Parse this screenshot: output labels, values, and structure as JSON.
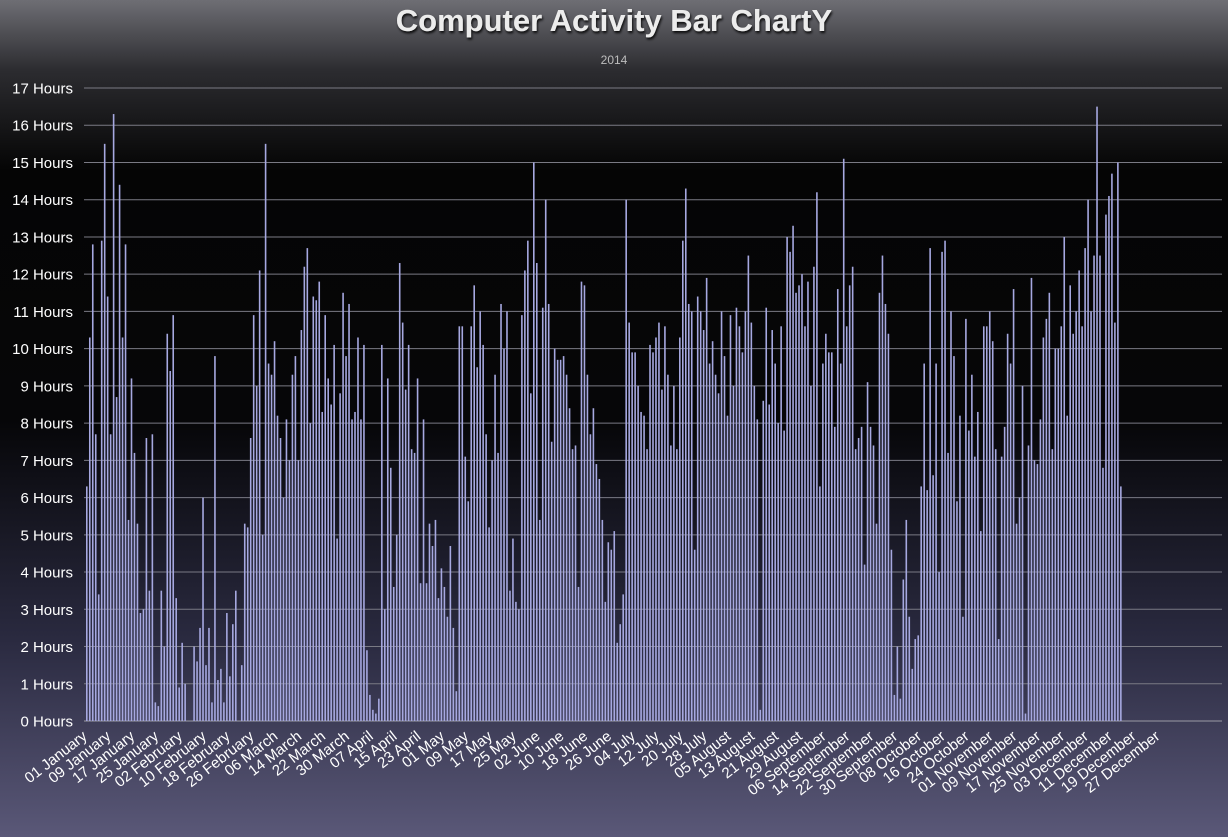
{
  "chart_data": {
    "type": "bar",
    "title": "Computer Activity Bar ChartY",
    "subtitle": "2014",
    "xlabel": "",
    "ylabel": "",
    "ylim": [
      0,
      17
    ],
    "ytick_values": [
      0,
      1,
      2,
      3,
      4,
      5,
      6,
      7,
      8,
      9,
      10,
      11,
      12,
      13,
      14,
      15,
      16,
      17
    ],
    "ytick_labels": [
      "0 Hours",
      "1 Hours",
      "2 Hours",
      "3 Hours",
      "4 Hours",
      "5 Hours",
      "6 Hours",
      "7 Hours",
      "8 Hours",
      "9 Hours",
      "10 Hours",
      "11 Hours",
      "12 Hours",
      "13 Hours",
      "14 Hours",
      "15 Hours",
      "16 Hours",
      "17 Hours"
    ],
    "xtick_labels": [
      "01 January",
      "09 January",
      "17 January",
      "25 January",
      "02 February",
      "10 February",
      "18 February",
      "26 February",
      "06 March",
      "14 March",
      "22 March",
      "30 March",
      "07 April",
      "15 April",
      "23 April",
      "01 May",
      "09 May",
      "17 May",
      "25 May",
      "02 June",
      "10 June",
      "18 June",
      "26 June",
      "04 July",
      "12 July",
      "20 July",
      "28 July",
      "05 August",
      "13 August",
      "21 August",
      "29 August",
      "06 September",
      "14 September",
      "22 September",
      "30 September",
      "08 October",
      "16 October",
      "24 October",
      "01 November",
      "09 November",
      "17 November",
      "25 November",
      "03 December",
      "11 December",
      "19 December",
      "27 December"
    ],
    "x_start": "2014-01-01",
    "x_end": "2014-12-31",
    "grid": true,
    "bar_color": "#a6a8e0",
    "values": [
      6.3,
      10.3,
      12.8,
      7.7,
      3.4,
      12.9,
      15.5,
      11.4,
      7.7,
      16.3,
      8.7,
      14.4,
      10.3,
      12.8,
      5.4,
      9.2,
      7.2,
      5.3,
      2.9,
      3.0,
      7.6,
      3.5,
      7.7,
      0.5,
      0.4,
      3.5,
      2.0,
      10.4,
      9.4,
      10.9,
      3.3,
      0.9,
      2.1,
      1.0,
      0.0,
      0.0,
      2.0,
      1.6,
      2.5,
      6.0,
      1.5,
      2.5,
      0.5,
      9.8,
      1.1,
      1.4,
      0.5,
      2.9,
      1.2,
      2.6,
      3.5,
      0.0,
      1.5,
      5.3,
      5.2,
      7.6,
      10.9,
      9.0,
      12.1,
      5.0,
      15.5,
      9.6,
      9.3,
      10.2,
      8.2,
      7.6,
      6.0,
      8.1,
      7.0,
      9.3,
      9.8,
      7.0,
      10.5,
      12.2,
      12.7,
      8.0,
      11.4,
      11.3,
      11.8,
      8.3,
      10.9,
      9.2,
      8.5,
      10.1,
      4.9,
      8.8,
      11.5,
      9.8,
      11.2,
      8.1,
      8.3,
      10.3,
      8.1,
      10.1,
      1.9,
      0.7,
      0.3,
      0.2,
      0.6,
      10.1,
      3.0,
      9.2,
      6.8,
      3.6,
      5.0,
      12.3,
      10.7,
      8.9,
      10.1,
      7.3,
      7.2,
      9.2,
      3.7,
      8.1,
      3.7,
      5.3,
      4.7,
      5.4,
      3.3,
      4.1,
      3.6,
      2.8,
      4.7,
      2.5,
      0.8,
      10.6,
      10.6,
      7.1,
      5.9,
      10.6,
      11.7,
      9.5,
      11.0,
      10.1,
      7.7,
      5.2,
      7.0,
      9.3,
      7.2,
      11.2,
      10.0,
      11.0,
      3.5,
      4.9,
      3.2,
      3.0,
      10.9,
      12.1,
      12.9,
      8.8,
      15.0,
      12.3,
      5.4,
      11.1,
      14.0,
      11.2,
      7.5,
      10.0,
      9.7,
      9.7,
      9.8,
      9.3,
      8.4,
      7.3,
      7.4,
      3.6,
      11.8,
      11.7,
      9.3,
      7.7,
      8.4,
      6.9,
      6.5,
      5.4,
      3.2,
      4.8,
      4.6,
      5.1,
      2.1,
      2.6,
      3.4,
      14.0,
      10.7,
      9.9,
      9.9,
      9.0,
      8.3,
      8.2,
      7.3,
      10.1,
      9.9,
      10.3,
      10.7,
      8.9,
      10.6,
      9.3,
      7.4,
      9.0,
      7.3,
      10.3,
      12.9,
      14.3,
      11.2,
      11.0,
      4.6,
      11.4,
      11.0,
      10.5,
      11.9,
      9.6,
      10.2,
      9.3,
      8.8,
      11.0,
      9.8,
      8.2,
      10.9,
      9.0,
      11.1,
      10.6,
      9.9,
      11.0,
      12.5,
      10.7,
      9.0,
      8.1,
      0.3,
      8.6,
      11.1,
      8.5,
      10.5,
      9.6,
      8.0,
      10.6,
      7.8,
      13.0,
      12.6,
      13.3,
      11.5,
      11.7,
      12.0,
      10.6,
      11.8,
      9.0,
      12.2,
      14.2,
      6.3,
      9.6,
      10.4,
      9.9,
      9.9,
      7.9,
      11.6,
      9.6,
      15.1,
      10.6,
      11.7,
      12.2,
      7.3,
      7.6,
      7.9,
      4.2,
      9.1,
      7.9,
      7.4,
      5.3,
      11.5,
      12.5,
      11.2,
      10.4,
      4.6,
      0.7,
      2.0,
      0.6,
      3.8,
      5.4,
      2.8,
      1.4,
      2.2,
      2.3,
      6.3,
      9.6,
      6.2,
      12.7,
      6.6,
      9.6,
      4.0,
      12.6,
      12.9,
      7.2,
      11.0,
      9.8,
      5.9,
      8.2,
      2.8,
      10.8,
      7.8,
      9.3,
      7.1,
      8.3,
      5.1,
      10.6,
      10.6,
      11.0,
      10.2,
      7.3,
      2.2,
      7.1,
      7.9,
      10.4,
      9.6,
      11.6,
      5.3,
      6.0,
      9.0,
      0.2,
      7.4,
      11.9,
      7.0,
      6.9,
      8.1,
      10.3,
      10.8,
      11.5,
      7.3,
      10.0,
      10.0,
      10.6,
      13.0,
      8.2,
      11.7,
      10.4,
      11.0,
      12.1,
      10.6,
      12.7,
      14.0,
      11.0,
      12.5,
      16.5,
      12.5,
      6.8,
      13.6,
      14.1,
      14.7,
      10.7,
      15.0,
      6.3
    ]
  }
}
